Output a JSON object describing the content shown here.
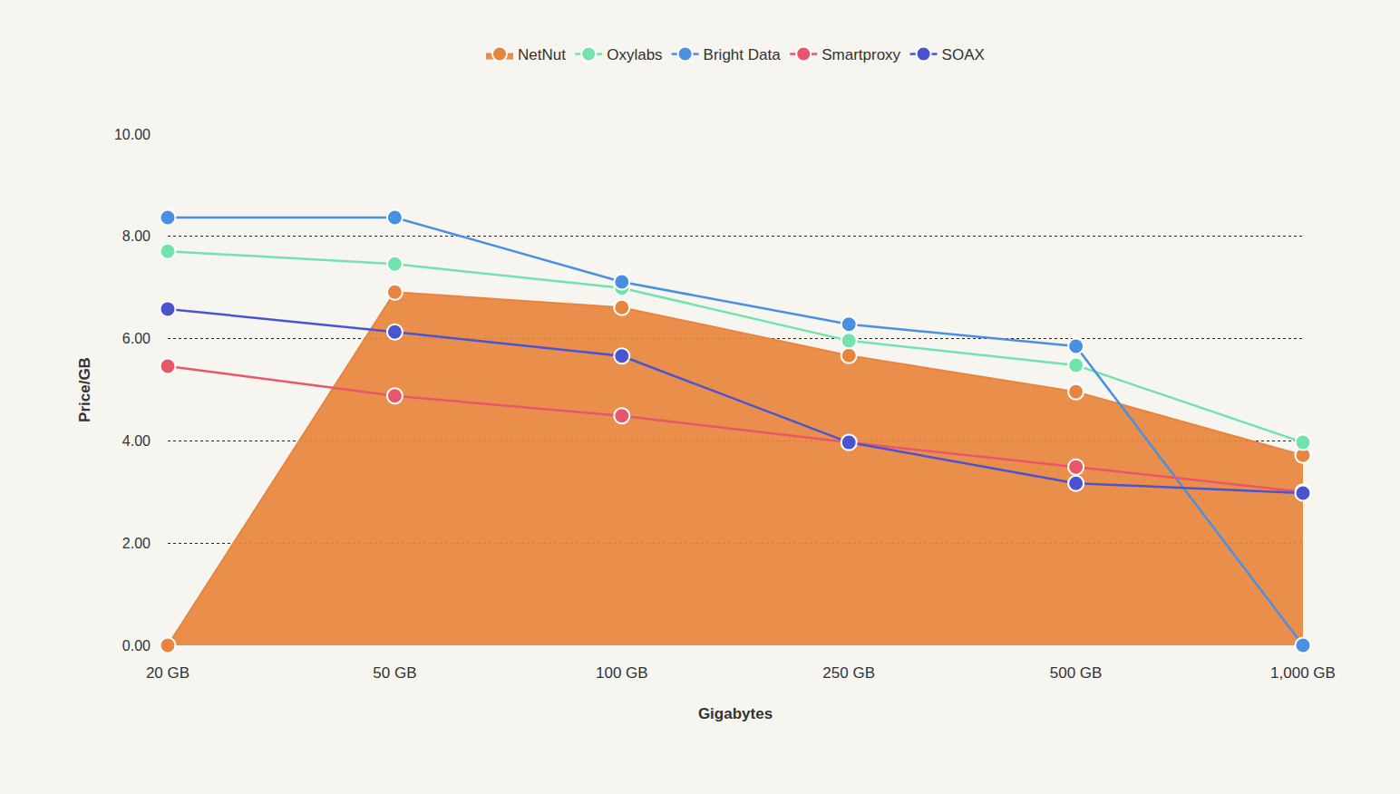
{
  "chart_data": {
    "type": "line",
    "x_label": "Gigabytes",
    "y_label": "Price/GB",
    "categories": [
      "20 GB",
      "50 GB",
      "100 GB",
      "250 GB",
      "500 GB",
      "1,000 GB"
    ],
    "series": [
      {
        "name": "NetNut",
        "color": "#e8843e",
        "type": "area",
        "marker": "circle",
        "values": [
          0,
          6.91,
          6.61,
          5.67,
          4.96,
          3.72
        ]
      },
      {
        "name": "Oxylabs",
        "color": "#72e3ad",
        "type": "line",
        "marker": "circle",
        "values": [
          7.71,
          7.46,
          6.99,
          5.96,
          5.48,
          3.97
        ]
      },
      {
        "name": "Bright Data",
        "color": "#4a90e2",
        "type": "line",
        "marker": "circle",
        "values": [
          8.37,
          8.37,
          7.11,
          6.28,
          5.85,
          0
        ]
      },
      {
        "name": "Smartproxy",
        "color": "#e8566a",
        "type": "line",
        "marker": "circle",
        "values": [
          5.46,
          4.88,
          4.49,
          3.97,
          3.49,
          3.0
        ]
      },
      {
        "name": "SOAX",
        "color": "#4b54d0",
        "type": "line",
        "marker": "circle",
        "values": [
          6.58,
          6.13,
          5.66,
          3.97,
          3.17,
          2.98
        ]
      }
    ],
    "ylim": [
      0,
      10
    ],
    "yticks": [
      {
        "value": 0,
        "label": "0.00"
      },
      {
        "value": 2,
        "label": "2.00"
      },
      {
        "value": 4,
        "label": "4.00"
      },
      {
        "value": 6,
        "label": "6.00"
      },
      {
        "value": 8,
        "label": "8.00"
      },
      {
        "value": 10,
        "label": "10.00"
      }
    ],
    "grid": true,
    "legend": "top"
  }
}
